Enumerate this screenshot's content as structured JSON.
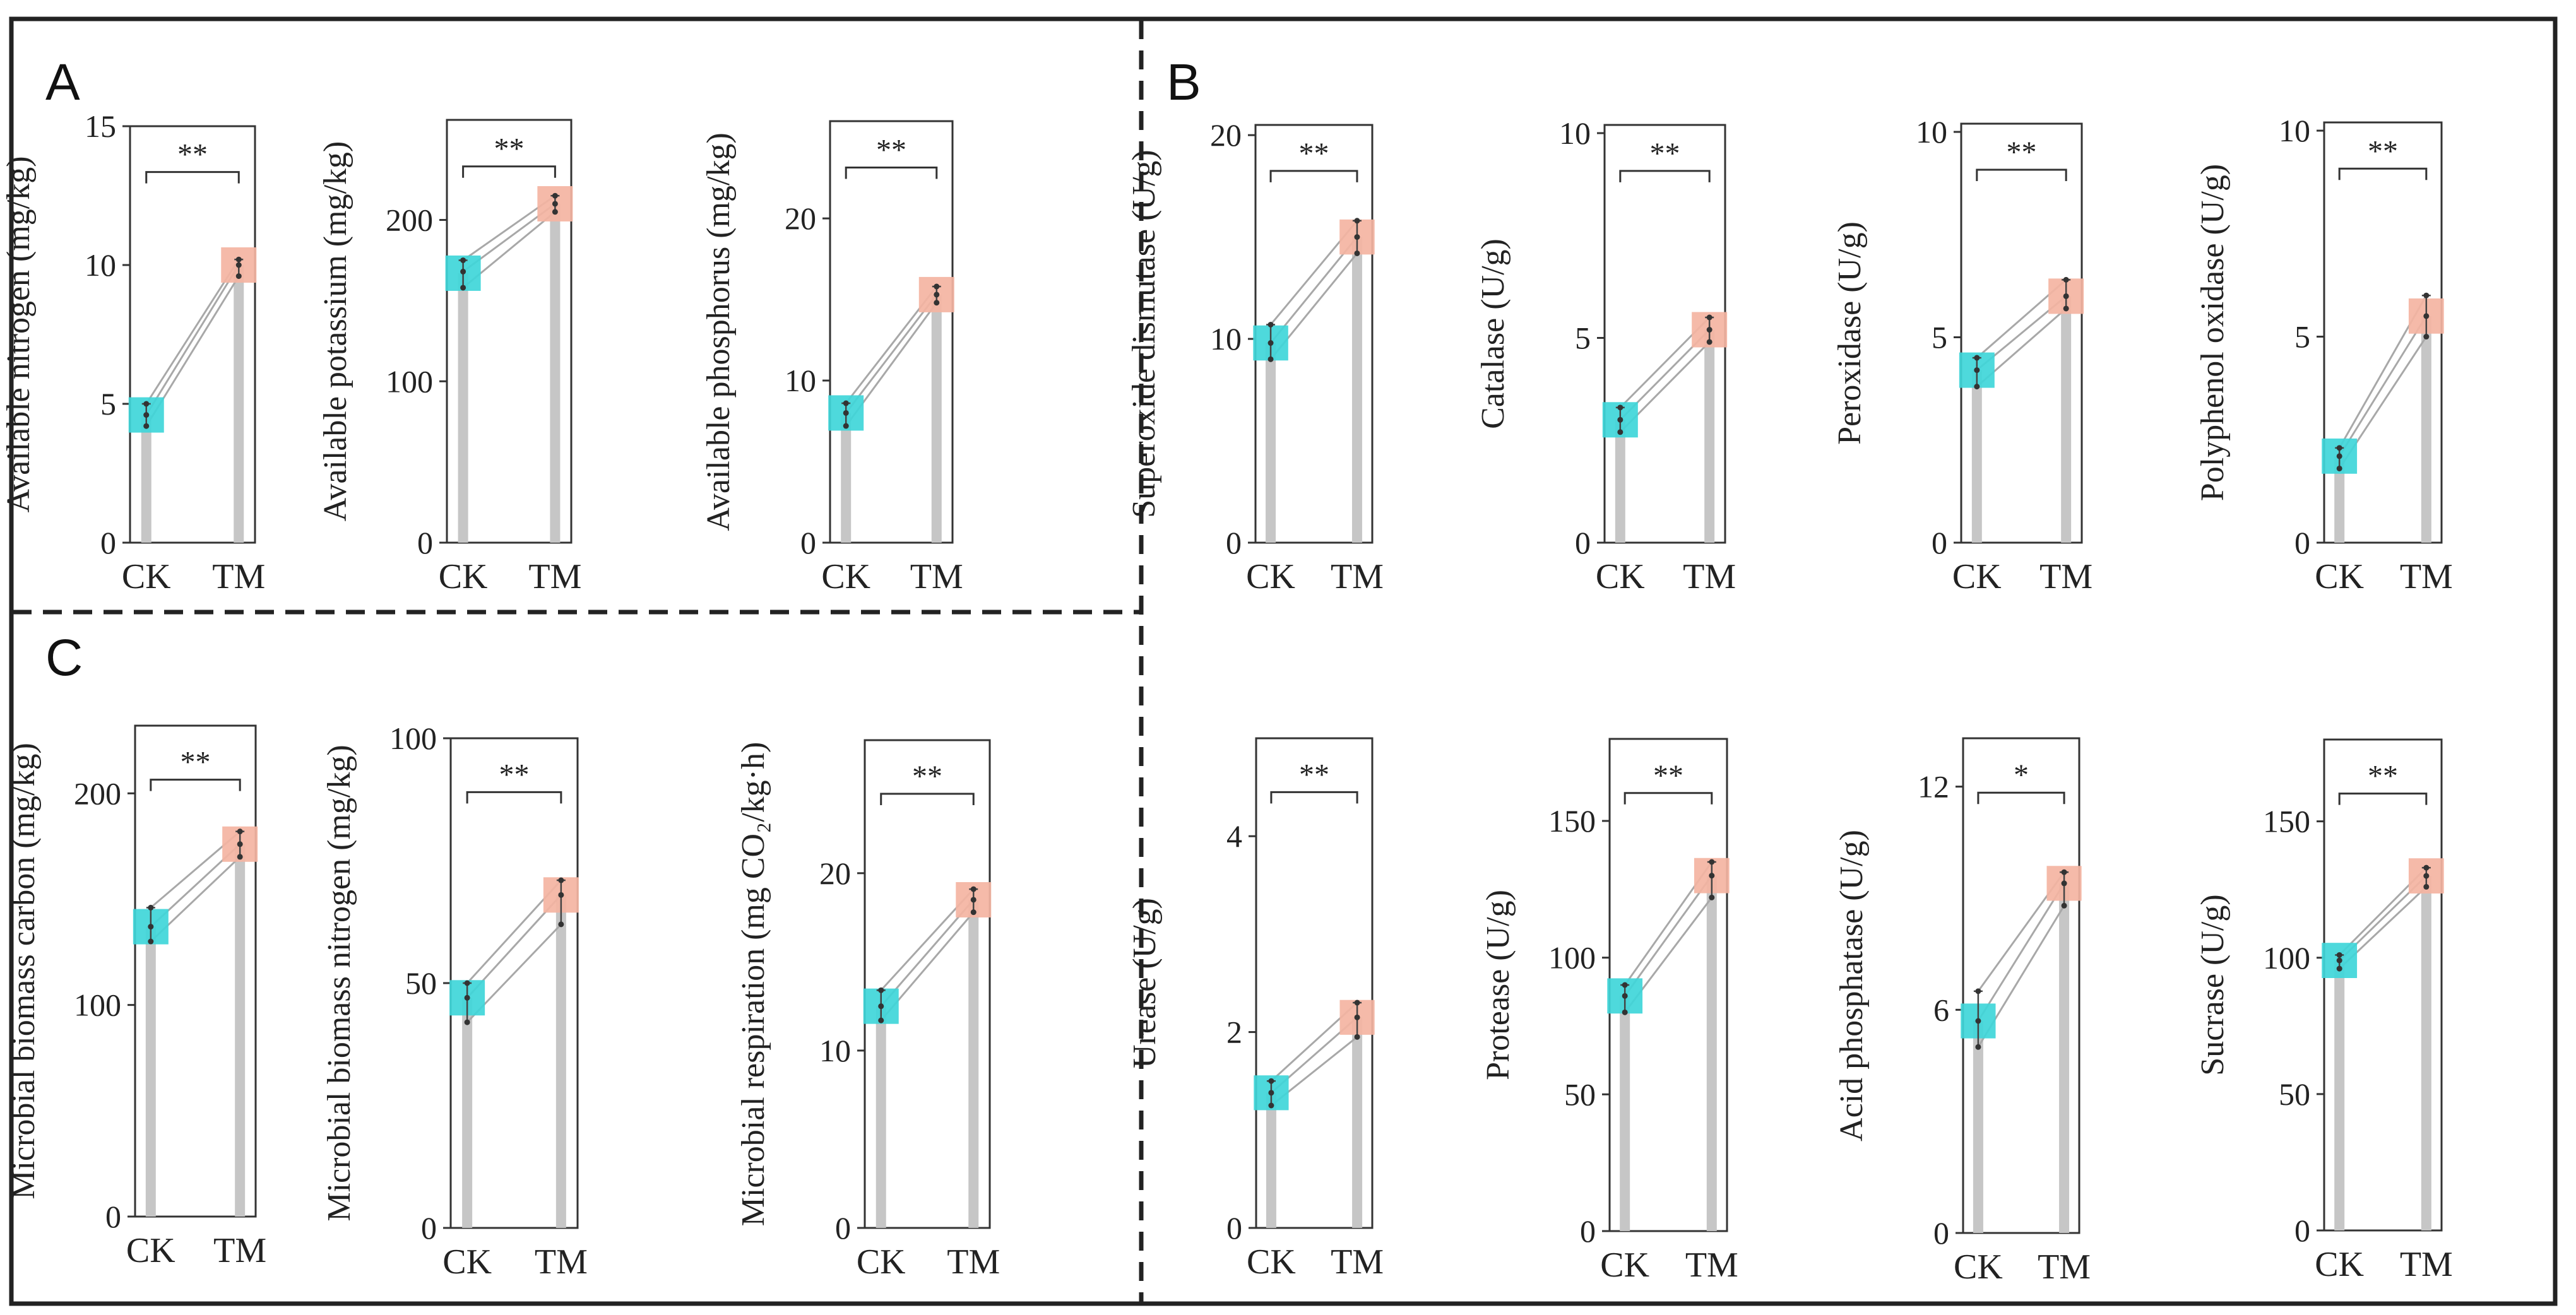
{
  "panels": [
    {
      "label": "A"
    },
    {
      "label": "B"
    },
    {
      "label": "C"
    }
  ],
  "colors": {
    "ck": "#3fd6d9",
    "tm": "#f4b4a2",
    "bar": "#c6c6c6",
    "line": "#a8a8a8",
    "frame": "#222222"
  },
  "chart_data": [
    {
      "type": "bar",
      "panel": "A",
      "ylabel": "Available nitrogen (mg/kg)",
      "categories": [
        "CK",
        "TM"
      ],
      "values": [
        4.6,
        10.0
      ],
      "replicates": [
        [
          4.2,
          4.6,
          5.0
        ],
        [
          9.6,
          10.0,
          10.2
        ]
      ],
      "ylim": [
        0,
        15
      ],
      "yticks": [
        0,
        5,
        10,
        15
      ],
      "significance": "**"
    },
    {
      "type": "bar",
      "panel": "A",
      "ylabel": "Available potassium (mg/kg)",
      "categories": [
        "CK",
        "TM"
      ],
      "values": [
        167,
        210
      ],
      "replicates": [
        [
          158,
          168,
          175
        ],
        [
          205,
          210,
          215
        ]
      ],
      "ylim": [
        0,
        262
      ],
      "yticks": [
        0,
        100,
        200
      ],
      "significance": "**"
    },
    {
      "type": "bar",
      "panel": "A",
      "ylabel": "Available phosphorus (mg/kg)",
      "categories": [
        "CK",
        "TM"
      ],
      "values": [
        8.0,
        15.3
      ],
      "replicates": [
        [
          7.2,
          8.0,
          8.6
        ],
        [
          14.8,
          15.3,
          15.8
        ]
      ],
      "ylim": [
        0,
        26
      ],
      "yticks": [
        0,
        10,
        20
      ],
      "significance": "**"
    },
    {
      "type": "bar",
      "panel": "B",
      "ylabel": "Superoxide dismutase (U/g)",
      "categories": [
        "CK",
        "TM"
      ],
      "values": [
        9.8,
        15.0
      ],
      "replicates": [
        [
          9.0,
          9.8,
          10.7
        ],
        [
          14.2,
          15.0,
          15.8
        ]
      ],
      "ylim": [
        0,
        20.5
      ],
      "yticks": [
        0,
        10,
        20
      ],
      "significance": "**"
    },
    {
      "type": "bar",
      "panel": "B",
      "ylabel": "Catalase (U/g)",
      "categories": [
        "CK",
        "TM"
      ],
      "values": [
        3.0,
        5.2
      ],
      "replicates": [
        [
          2.7,
          3.0,
          3.3
        ],
        [
          4.9,
          5.2,
          5.5
        ]
      ],
      "ylim": [
        0,
        10.2
      ],
      "yticks": [
        0,
        5,
        10
      ],
      "significance": "**"
    },
    {
      "type": "bar",
      "panel": "B",
      "ylabel": "Peroxidase (U/g)",
      "categories": [
        "CK",
        "TM"
      ],
      "values": [
        4.2,
        6.0
      ],
      "replicates": [
        [
          3.8,
          4.2,
          4.5
        ],
        [
          5.7,
          6.0,
          6.4
        ]
      ],
      "ylim": [
        0,
        10.2
      ],
      "yticks": [
        0,
        5,
        10
      ],
      "significance": "**"
    },
    {
      "type": "bar",
      "panel": "B",
      "ylabel": "Polyphenol oxidase (U/g)",
      "categories": [
        "CK",
        "TM"
      ],
      "values": [
        2.1,
        5.5
      ],
      "replicates": [
        [
          1.8,
          2.1,
          2.3
        ],
        [
          5.0,
          5.5,
          6.0
        ]
      ],
      "ylim": [
        0,
        10.2
      ],
      "yticks": [
        0,
        5,
        10
      ],
      "significance": "**"
    },
    {
      "type": "bar",
      "panel": "C",
      "ylabel": "Microbial biomass carbon (mg/kg)",
      "categories": [
        "CK",
        "TM"
      ],
      "values": [
        137,
        176
      ],
      "replicates": [
        [
          130,
          137,
          146
        ],
        [
          170,
          176,
          182
        ]
      ],
      "ylim": [
        0,
        232
      ],
      "yticks": [
        0,
        100,
        200
      ],
      "significance": "**"
    },
    {
      "type": "bar",
      "panel": "C",
      "ylabel": "Microbial biomass nitrogen (mg/kg)",
      "categories": [
        "CK",
        "TM"
      ],
      "values": [
        47,
        68
      ],
      "replicates": [
        [
          42,
          47,
          50
        ],
        [
          62,
          68,
          71
        ]
      ],
      "ylim": [
        0,
        100
      ],
      "yticks": [
        0,
        50,
        100
      ],
      "significance": "**"
    },
    {
      "type": "bar",
      "panel": "C",
      "ylabel": "Microbial respiration (mg CO₂/kg·h)",
      "categories": [
        "CK",
        "TM"
      ],
      "values": [
        12.5,
        18.5
      ],
      "replicates": [
        [
          11.7,
          12.5,
          13.4
        ],
        [
          17.8,
          18.5,
          19.1
        ]
      ],
      "ylim": [
        0,
        27.5
      ],
      "yticks": [
        0,
        10,
        20
      ],
      "significance": "**"
    },
    {
      "type": "bar",
      "panel": "B",
      "ylabel": "Urease (U/g)",
      "categories": [
        "CK",
        "TM"
      ],
      "values": [
        1.38,
        2.15
      ],
      "replicates": [
        [
          1.25,
          1.38,
          1.5
        ],
        [
          1.95,
          2.15,
          2.3
        ]
      ],
      "ylim": [
        0,
        5.0
      ],
      "yticks": [
        0,
        2,
        4
      ],
      "significance": "**"
    },
    {
      "type": "bar",
      "panel": "B",
      "ylabel": "Protease (U/g)",
      "categories": [
        "CK",
        "TM"
      ],
      "values": [
        86,
        130
      ],
      "replicates": [
        [
          80,
          86,
          90
        ],
        [
          122,
          130,
          135
        ]
      ],
      "ylim": [
        0,
        180
      ],
      "yticks": [
        0,
        50,
        100,
        150
      ],
      "significance": "**"
    },
    {
      "type": "bar",
      "panel": "B",
      "ylabel": "Acid phosphatase (U/g)",
      "categories": [
        "CK",
        "TM"
      ],
      "values": [
        5.7,
        9.4
      ],
      "replicates": [
        [
          5.0,
          5.7,
          6.5
        ],
        [
          8.8,
          9.4,
          9.7
        ]
      ],
      "ylim": [
        0,
        13.3
      ],
      "yticks": [
        0,
        6,
        12
      ],
      "significance": "*"
    },
    {
      "type": "bar",
      "panel": "B",
      "ylabel": "Sucrase (U/g)",
      "categories": [
        "CK",
        "TM"
      ],
      "values": [
        99,
        130
      ],
      "replicates": [
        [
          96,
          99,
          101
        ],
        [
          126,
          130,
          133
        ]
      ],
      "ylim": [
        0,
        180
      ],
      "yticks": [
        0,
        50,
        100,
        150
      ],
      "significance": "**"
    }
  ]
}
